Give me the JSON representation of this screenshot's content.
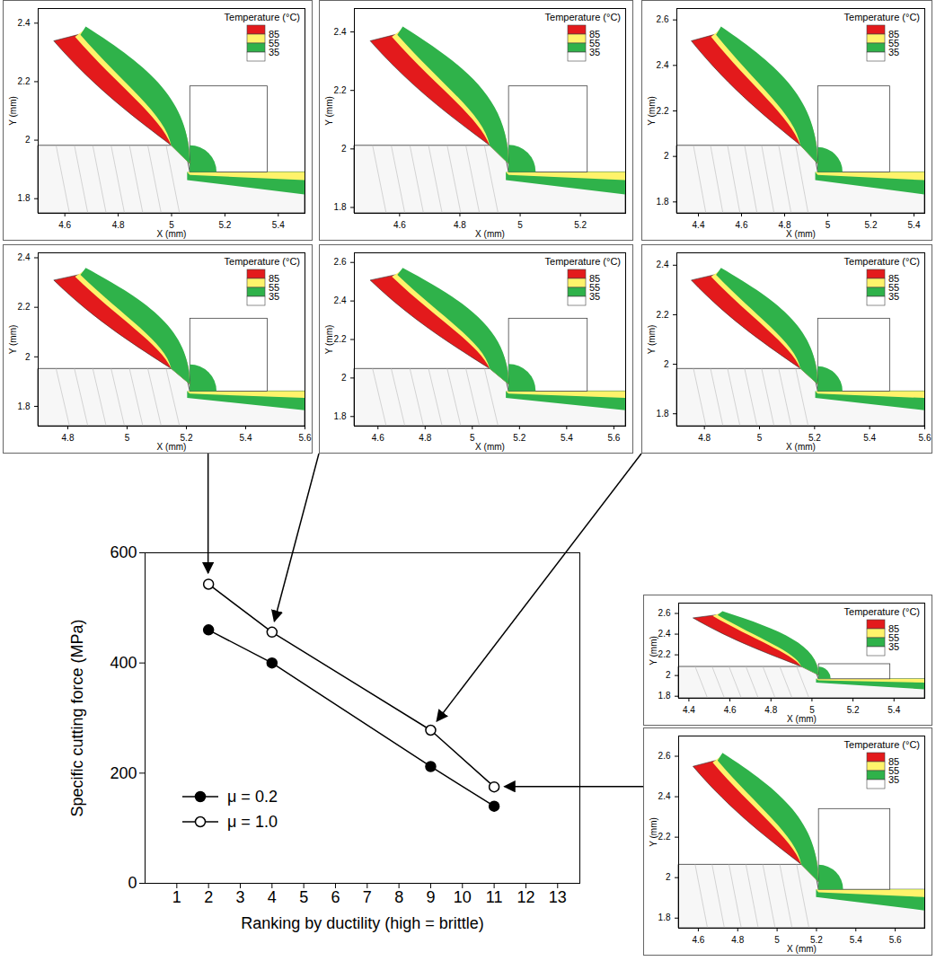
{
  "chart_data": [
    {
      "type": "line",
      "xlabel": "Ranking by ductility (high = brittle)",
      "ylabel": "Specific cutting force (MPa)",
      "xlim": [
        0,
        13.7
      ],
      "ylim": [
        0,
        600
      ],
      "xticks": [
        1,
        2,
        3,
        4,
        5,
        6,
        7,
        8,
        9,
        10,
        11,
        12,
        13
      ],
      "yticks": [
        0,
        200,
        400,
        600
      ],
      "legend": "lower left",
      "x": [
        2,
        4,
        9,
        11
      ],
      "series": [
        {
          "name": "μ = 0.2",
          "color": "#000000",
          "marker": "filled_circle",
          "values": [
            460,
            400,
            212,
            140
          ]
        },
        {
          "name": "μ = 1.0",
          "color": "#000000",
          "marker": "open_circle",
          "values": [
            543,
            456,
            278,
            175
          ]
        }
      ]
    },
    {
      "type": "diagram",
      "xlabel": "X (mm)",
      "ylabel": "Y (mm)",
      "xlim": [
        4.5,
        5.5
      ],
      "ylim": [
        1.75,
        2.45
      ],
      "xticks": [
        4.6,
        4.8,
        5,
        5.2,
        5.4
      ],
      "yticks": [
        1.8,
        2,
        2.2,
        2.4
      ],
      "legend": "upper right",
      "legend_title": "Temperature (°C)",
      "legend_labels": [
        85,
        55,
        35
      ],
      "colors": [
        "#e31a1c",
        "#fff36b",
        "#2fb24a",
        "#ffffff"
      ]
    },
    {
      "type": "diagram",
      "xlabel": "X (mm)",
      "ylabel": "Y (mm)",
      "xlim": [
        4.45,
        5.35
      ],
      "ylim": [
        1.78,
        2.48
      ],
      "xticks": [
        4.6,
        4.8,
        5,
        5.2
      ],
      "yticks": [
        1.8,
        2,
        2.2,
        2.4
      ],
      "legend": "upper right",
      "legend_title": "Temperature (°C)",
      "legend_labels": [
        85,
        55,
        35
      ],
      "colors": [
        "#e31a1c",
        "#fff36b",
        "#2fb24a",
        "#ffffff"
      ]
    },
    {
      "type": "diagram",
      "xlabel": "X (mm)",
      "ylabel": "Y (mm)",
      "xlim": [
        4.3,
        5.45
      ],
      "ylim": [
        1.75,
        2.65
      ],
      "xticks": [
        4.4,
        4.6,
        4.8,
        5,
        5.2,
        5.4
      ],
      "yticks": [
        1.8,
        2,
        2.2,
        2.4,
        2.6
      ],
      "legend": "upper right",
      "legend_title": "Temperature (°C)",
      "legend_labels": [
        85,
        55,
        35
      ],
      "colors": [
        "#e31a1c",
        "#fff36b",
        "#2fb24a",
        "#ffffff"
      ]
    },
    {
      "type": "diagram",
      "xlabel": "X (mm)",
      "ylabel": "Y (mm)",
      "xlim": [
        4.7,
        5.6
      ],
      "ylim": [
        1.72,
        2.42
      ],
      "xticks": [
        4.8,
        5,
        5.2,
        5.4,
        5.6
      ],
      "yticks": [
        1.8,
        2,
        2.2,
        2.4
      ],
      "legend": "upper right",
      "legend_title": "Temperature (°C)",
      "legend_labels": [
        85,
        55,
        35
      ],
      "colors": [
        "#e31a1c",
        "#fff36b",
        "#2fb24a",
        "#ffffff"
      ],
      "arrow_to": 2
    },
    {
      "type": "diagram",
      "xlabel": "X (mm)",
      "ylabel": "Y (mm)",
      "xlim": [
        4.5,
        5.65
      ],
      "ylim": [
        1.75,
        2.65
      ],
      "xticks": [
        4.6,
        4.8,
        5,
        5.2,
        5.4,
        5.6
      ],
      "yticks": [
        1.8,
        2,
        2.2,
        2.4,
        2.6
      ],
      "legend": "upper right",
      "legend_title": "Temperature (°C)",
      "legend_labels": [
        85,
        55,
        35
      ],
      "colors": [
        "#e31a1c",
        "#fff36b",
        "#2fb24a",
        "#ffffff"
      ],
      "arrow_to": 4
    },
    {
      "type": "diagram",
      "xlabel": "X (mm)",
      "ylabel": "Y (mm)",
      "xlim": [
        4.7,
        5.6
      ],
      "ylim": [
        1.75,
        2.45
      ],
      "xticks": [
        4.8,
        5,
        5.2,
        5.4,
        5.6
      ],
      "yticks": [
        1.8,
        2,
        2.2,
        2.4
      ],
      "legend": "upper right",
      "legend_title": "Temperature (°C)",
      "legend_labels": [
        85,
        55,
        35
      ],
      "colors": [
        "#e31a1c",
        "#fff36b",
        "#2fb24a",
        "#ffffff"
      ],
      "arrow_to": 9
    },
    {
      "type": "diagram",
      "xlabel": "X (mm)",
      "ylabel": "Y (mm)",
      "xlim": [
        4.35,
        5.55
      ],
      "ylim": [
        1.78,
        2.7
      ],
      "xticks": [
        4.4,
        4.6,
        4.8,
        5,
        5.2,
        5.4
      ],
      "yticks": [
        1.8,
        2,
        2.2,
        2.4,
        2.6
      ],
      "legend": "upper right",
      "legend_title": "Temperature (°C)",
      "legend_labels": [
        85,
        55,
        35
      ],
      "colors": [
        "#e31a1c",
        "#fff36b",
        "#2fb24a",
        "#ffffff"
      ]
    },
    {
      "type": "diagram",
      "xlabel": "X (mm)",
      "ylabel": "Y (mm)",
      "xlim": [
        4.5,
        5.75
      ],
      "ylim": [
        1.75,
        2.7
      ],
      "xticks": [
        4.6,
        4.8,
        5,
        5.2,
        5.4,
        5.6
      ],
      "yticks": [
        1.8,
        2,
        2.2,
        2.4,
        2.6
      ],
      "legend": "upper right",
      "legend_title": "Temperature (°C)",
      "legend_labels": [
        85,
        55,
        35
      ],
      "colors": [
        "#e31a1c",
        "#fff36b",
        "#2fb24a",
        "#ffffff"
      ],
      "arrow_to": 11
    }
  ]
}
